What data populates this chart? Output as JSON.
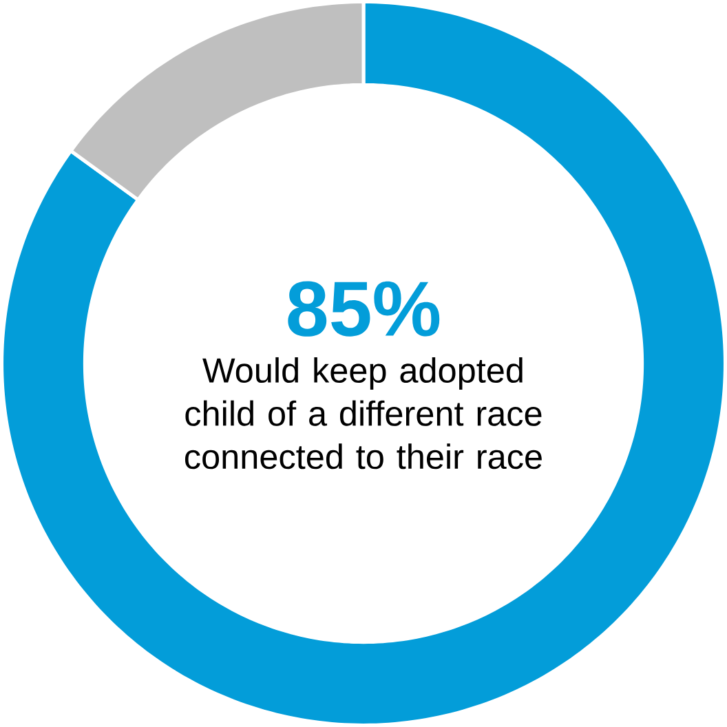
{
  "chart_data": {
    "type": "donut",
    "categories": [
      "Would keep adopted child of a different race connected to their race",
      null
    ],
    "values": [
      85,
      15
    ],
    "colors": [
      "#039dd9",
      "#bfbfbf"
    ],
    "value_labels": [
      "85%",
      null
    ]
  }
}
